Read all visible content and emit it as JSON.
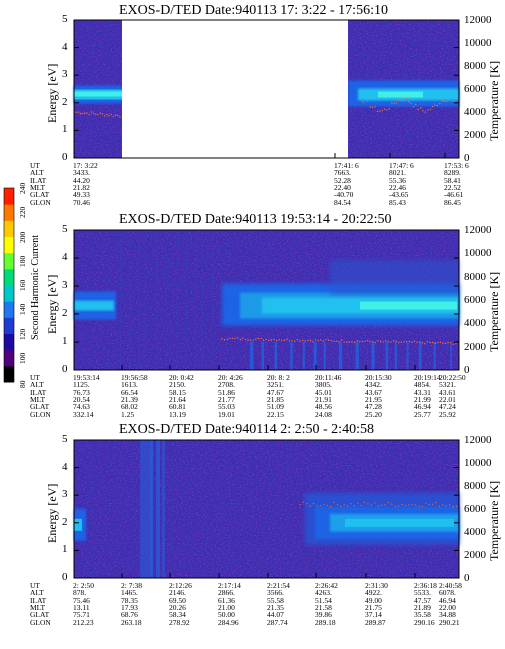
{
  "chart_data": [
    {
      "type": "heatmap",
      "title": "EXOS-D/TED   Date:940113  17: 3:22 - 17:56:10",
      "ylabel_left": "Energy [eV]",
      "ylabel_right": "Temperature [K]",
      "y_ticks_left": [
        "0",
        "1",
        "2",
        "3",
        "4",
        "5"
      ],
      "y_ticks_right": [
        "0",
        "2000",
        "4000",
        "6000",
        "8000",
        "10000",
        "12000"
      ],
      "ylim": [
        0,
        5
      ],
      "ylim_right": [
        0,
        12000
      ],
      "data_gap": [
        "17: 7:00",
        "17:41:00"
      ],
      "band_center_energy_ev": 2.3,
      "orbit_labels": [
        "UT",
        "ALT",
        "ILAT",
        "MLT",
        "GLAT",
        "GLON"
      ],
      "orbit_columns": [
        {
          "UT": "17: 3:22",
          "ALT": "3433.",
          "ILAT": "44.20",
          "MLT": "21.82",
          "GLAT": "49.33",
          "GLON": "70.46"
        },
        {
          "UT": "17:41: 6",
          "ALT": "7663.",
          "ILAT": "52.28",
          "MLT": "22.40",
          "GLAT": "-40.70",
          "GLON": "84.54"
        },
        {
          "UT": "17:47: 6",
          "ALT": "8021.",
          "ILAT": "55.36",
          "MLT": "22.46",
          "GLAT": "-43.65",
          "GLON": "85.43"
        },
        {
          "UT": "17:53: 6",
          "ALT": "8289.",
          "ILAT": "58.41",
          "MLT": "22.52",
          "GLAT": "-46.61",
          "GLON": "86.45"
        }
      ]
    },
    {
      "type": "heatmap",
      "title": "EXOS-D/TED   Date:940113  19:53:14 - 20:22:50",
      "ylabel_left": "Energy [eV]",
      "ylabel_right": "Temperature [K]",
      "y_ticks_left": [
        "0",
        "1",
        "2",
        "3",
        "4",
        "5"
      ],
      "y_ticks_right": [
        "0",
        "2000",
        "4000",
        "6000",
        "8000",
        "10000",
        "12000"
      ],
      "ylim": [
        0,
        5
      ],
      "ylim_right": [
        0,
        12000
      ],
      "band_center_energy_ev": 2.3,
      "orbit_labels": [
        "UT",
        "ALT",
        "ILAT",
        "MLT",
        "GLAT",
        "GLON"
      ],
      "orbit_columns": [
        {
          "UT": "19:53:14",
          "ALT": "1125.",
          "ILAT": "76.73",
          "MLT": "20.54",
          "GLAT": "74.63",
          "GLON": "332.14"
        },
        {
          "UT": "19:56:58",
          "ALT": "1613.",
          "ILAT": "66.54",
          "MLT": "21.39",
          "GLAT": "68.02",
          "GLON": "1.25"
        },
        {
          "UT": "20: 0:42",
          "ALT": "2150.",
          "ILAT": "58.15",
          "MLT": "21.64",
          "GLAT": "60.81",
          "GLON": "13.19"
        },
        {
          "UT": "20: 4:26",
          "ALT": "2708.",
          "ILAT": "51.86",
          "MLT": "21.77",
          "GLAT": "55.03",
          "GLON": "19.01"
        },
        {
          "UT": "20: 8: 2",
          "ALT": "3251.",
          "ILAT": "47.67",
          "MLT": "21.85",
          "GLAT": "51.09",
          "GLON": "22.15"
        },
        {
          "UT": "20:11:46",
          "ALT": "3805.",
          "ILAT": "45.01",
          "MLT": "21.91",
          "GLAT": "48.56",
          "GLON": "24.08"
        },
        {
          "UT": "20:15:30",
          "ALT": "4342.",
          "ILAT": "43.67",
          "MLT": "21.95",
          "GLAT": "47.28",
          "GLON": "25.20"
        },
        {
          "UT": "20:19:14",
          "ALT": "4854.",
          "ILAT": "43.31",
          "MLT": "21.99",
          "GLAT": "46.94",
          "GLON": "25.77"
        },
        {
          "UT": "20:22:50",
          "ALT": "5321.",
          "ILAT": "43.61",
          "MLT": "22.01",
          "GLAT": "47.24",
          "GLON": "25.92"
        }
      ]
    },
    {
      "type": "heatmap",
      "title": "EXOS-D/TED   Date:940114  2: 2:50 - 2:40:58",
      "ylabel_left": "Energy [eV]",
      "ylabel_right": "Temperature [K]",
      "y_ticks_left": [
        "0",
        "1",
        "2",
        "3",
        "4",
        "5"
      ],
      "y_ticks_right": [
        "0",
        "2000",
        "4000",
        "6000",
        "8000",
        "10000",
        "12000"
      ],
      "ylim": [
        0,
        5
      ],
      "ylim_right": [
        0,
        12000
      ],
      "band_center_energy_ev": 2.0,
      "orbit_labels": [
        "UT",
        "ALT",
        "ILAT",
        "MLT",
        "GLAT",
        "GLON"
      ],
      "orbit_columns": [
        {
          "UT": "2: 2:50",
          "ALT": "878.",
          "ILAT": "75.46",
          "MLT": "13.11",
          "GLAT": "75.71",
          "GLON": "212.23"
        },
        {
          "UT": "2: 7:38",
          "ALT": "1465.",
          "ILAT": "78.35",
          "MLT": "17.93",
          "GLAT": "68.76",
          "GLON": "263.18"
        },
        {
          "UT": "2:12:26",
          "ALT": "2146.",
          "ILAT": "69.50",
          "MLT": "20.26",
          "GLAT": "58.34",
          "GLON": "278.92"
        },
        {
          "UT": "2:17:14",
          "ALT": "2866.",
          "ILAT": "61.36",
          "MLT": "21.00",
          "GLAT": "50.00",
          "GLON": "284.96"
        },
        {
          "UT": "2:21:54",
          "ALT": "3566.",
          "ILAT": "55.58",
          "MLT": "21.35",
          "GLAT": "44.07",
          "GLON": "287.74"
        },
        {
          "UT": "2:26:42",
          "ALT": "4263.",
          "ILAT": "51.54",
          "MLT": "21.58",
          "GLAT": "39.86",
          "GLON": "289.18"
        },
        {
          "UT": "2:31:30",
          "ALT": "4922.",
          "ILAT": "49.00",
          "MLT": "21.75",
          "GLAT": "37.14",
          "GLON": "289.87"
        },
        {
          "UT": "2:36:18",
          "ALT": "5533.",
          "ILAT": "47.57",
          "MLT": "21.89",
          "GLAT": "35.58",
          "GLON": "290.16"
        },
        {
          "UT": "2:40:58",
          "ALT": "6078.",
          "ILAT": "46.94",
          "MLT": "22.00",
          "GLAT": "34.88",
          "GLON": "290.21"
        }
      ]
    }
  ],
  "colorbar": {
    "label": "Second Harmonic Current",
    "ticks": [
      "80",
      "100",
      "120",
      "140",
      "160",
      "180",
      "200",
      "220",
      "240"
    ],
    "colors": [
      "#000000",
      "#50007a",
      "#1e0aa0",
      "#1e3cd2",
      "#1e78f0",
      "#00c8c8",
      "#00dc78",
      "#64ff32",
      "#ffff00",
      "#ffc800",
      "#ff7800",
      "#ff1e00"
    ]
  },
  "colors": {
    "background_field": "#3a2fb0",
    "band_outer": "#1e64e6",
    "band_core": "#20c0ee",
    "band_peak": "#40f0e8",
    "temperature_dots": "#ff6a3d"
  }
}
